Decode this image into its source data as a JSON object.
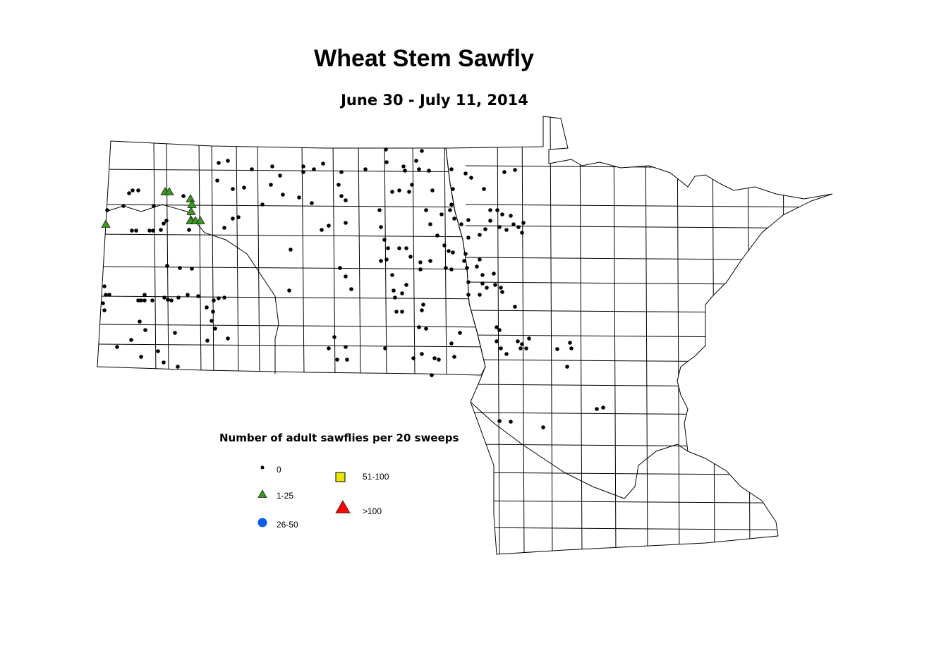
{
  "title": "Wheat Stem Sawfly",
  "subtitle": "June 30 - July 11, 2014",
  "legend": {
    "title": "Number of adult sawflies per 20 sweeps",
    "classes": [
      {
        "label": "0",
        "symbol": "dot",
        "color": "#000000"
      },
      {
        "label": "1-25",
        "symbol": "triangle",
        "color": "#3a9a1a"
      },
      {
        "label": "26-50",
        "symbol": "circle",
        "color": "#0a5fe6"
      },
      {
        "label": "51-100",
        "symbol": "square",
        "color": "#e8e800"
      },
      {
        "label": ">100",
        "symbol": "triangle",
        "color": "#ff0000"
      }
    ]
  },
  "colors": {
    "outline": "#000000",
    "background": "#ffffff"
  }
}
